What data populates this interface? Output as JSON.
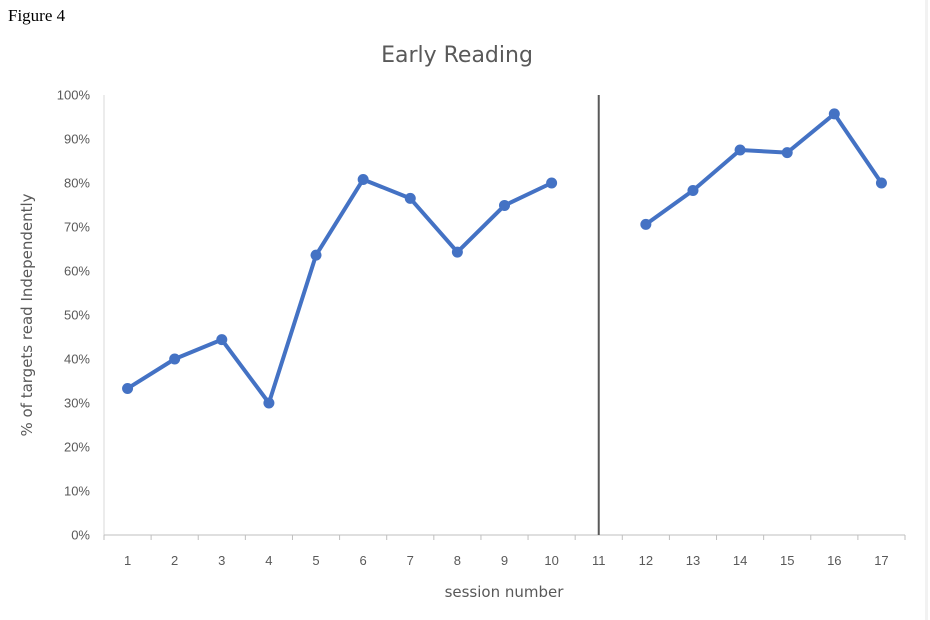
{
  "figure_label": "Figure 4",
  "chart_data": {
    "type": "line",
    "title": "Early Reading",
    "xlabel": "session number",
    "ylabel": "% of targets read Independently",
    "categories": [
      "1",
      "2",
      "3",
      "4",
      "5",
      "6",
      "7",
      "8",
      "9",
      "10",
      "11",
      "12",
      "13",
      "14",
      "15",
      "16",
      "17"
    ],
    "ylim": [
      0,
      100
    ],
    "yticks": [
      "0%",
      "10%",
      "20%",
      "30%",
      "40%",
      "50%",
      "60%",
      "70%",
      "80%",
      "90%",
      "100%"
    ],
    "phase_change_after": "10",
    "phase_line_at": "11",
    "series": [
      {
        "color": "#4472C4",
        "values": [
          33.3,
          40,
          44.4,
          30,
          63.6,
          80.8,
          76.5,
          64.3,
          74.9,
          80,
          null,
          70.6,
          78.3,
          87.5,
          86.9,
          95.7,
          80
        ]
      }
    ],
    "grid": false,
    "legend": "none"
  }
}
